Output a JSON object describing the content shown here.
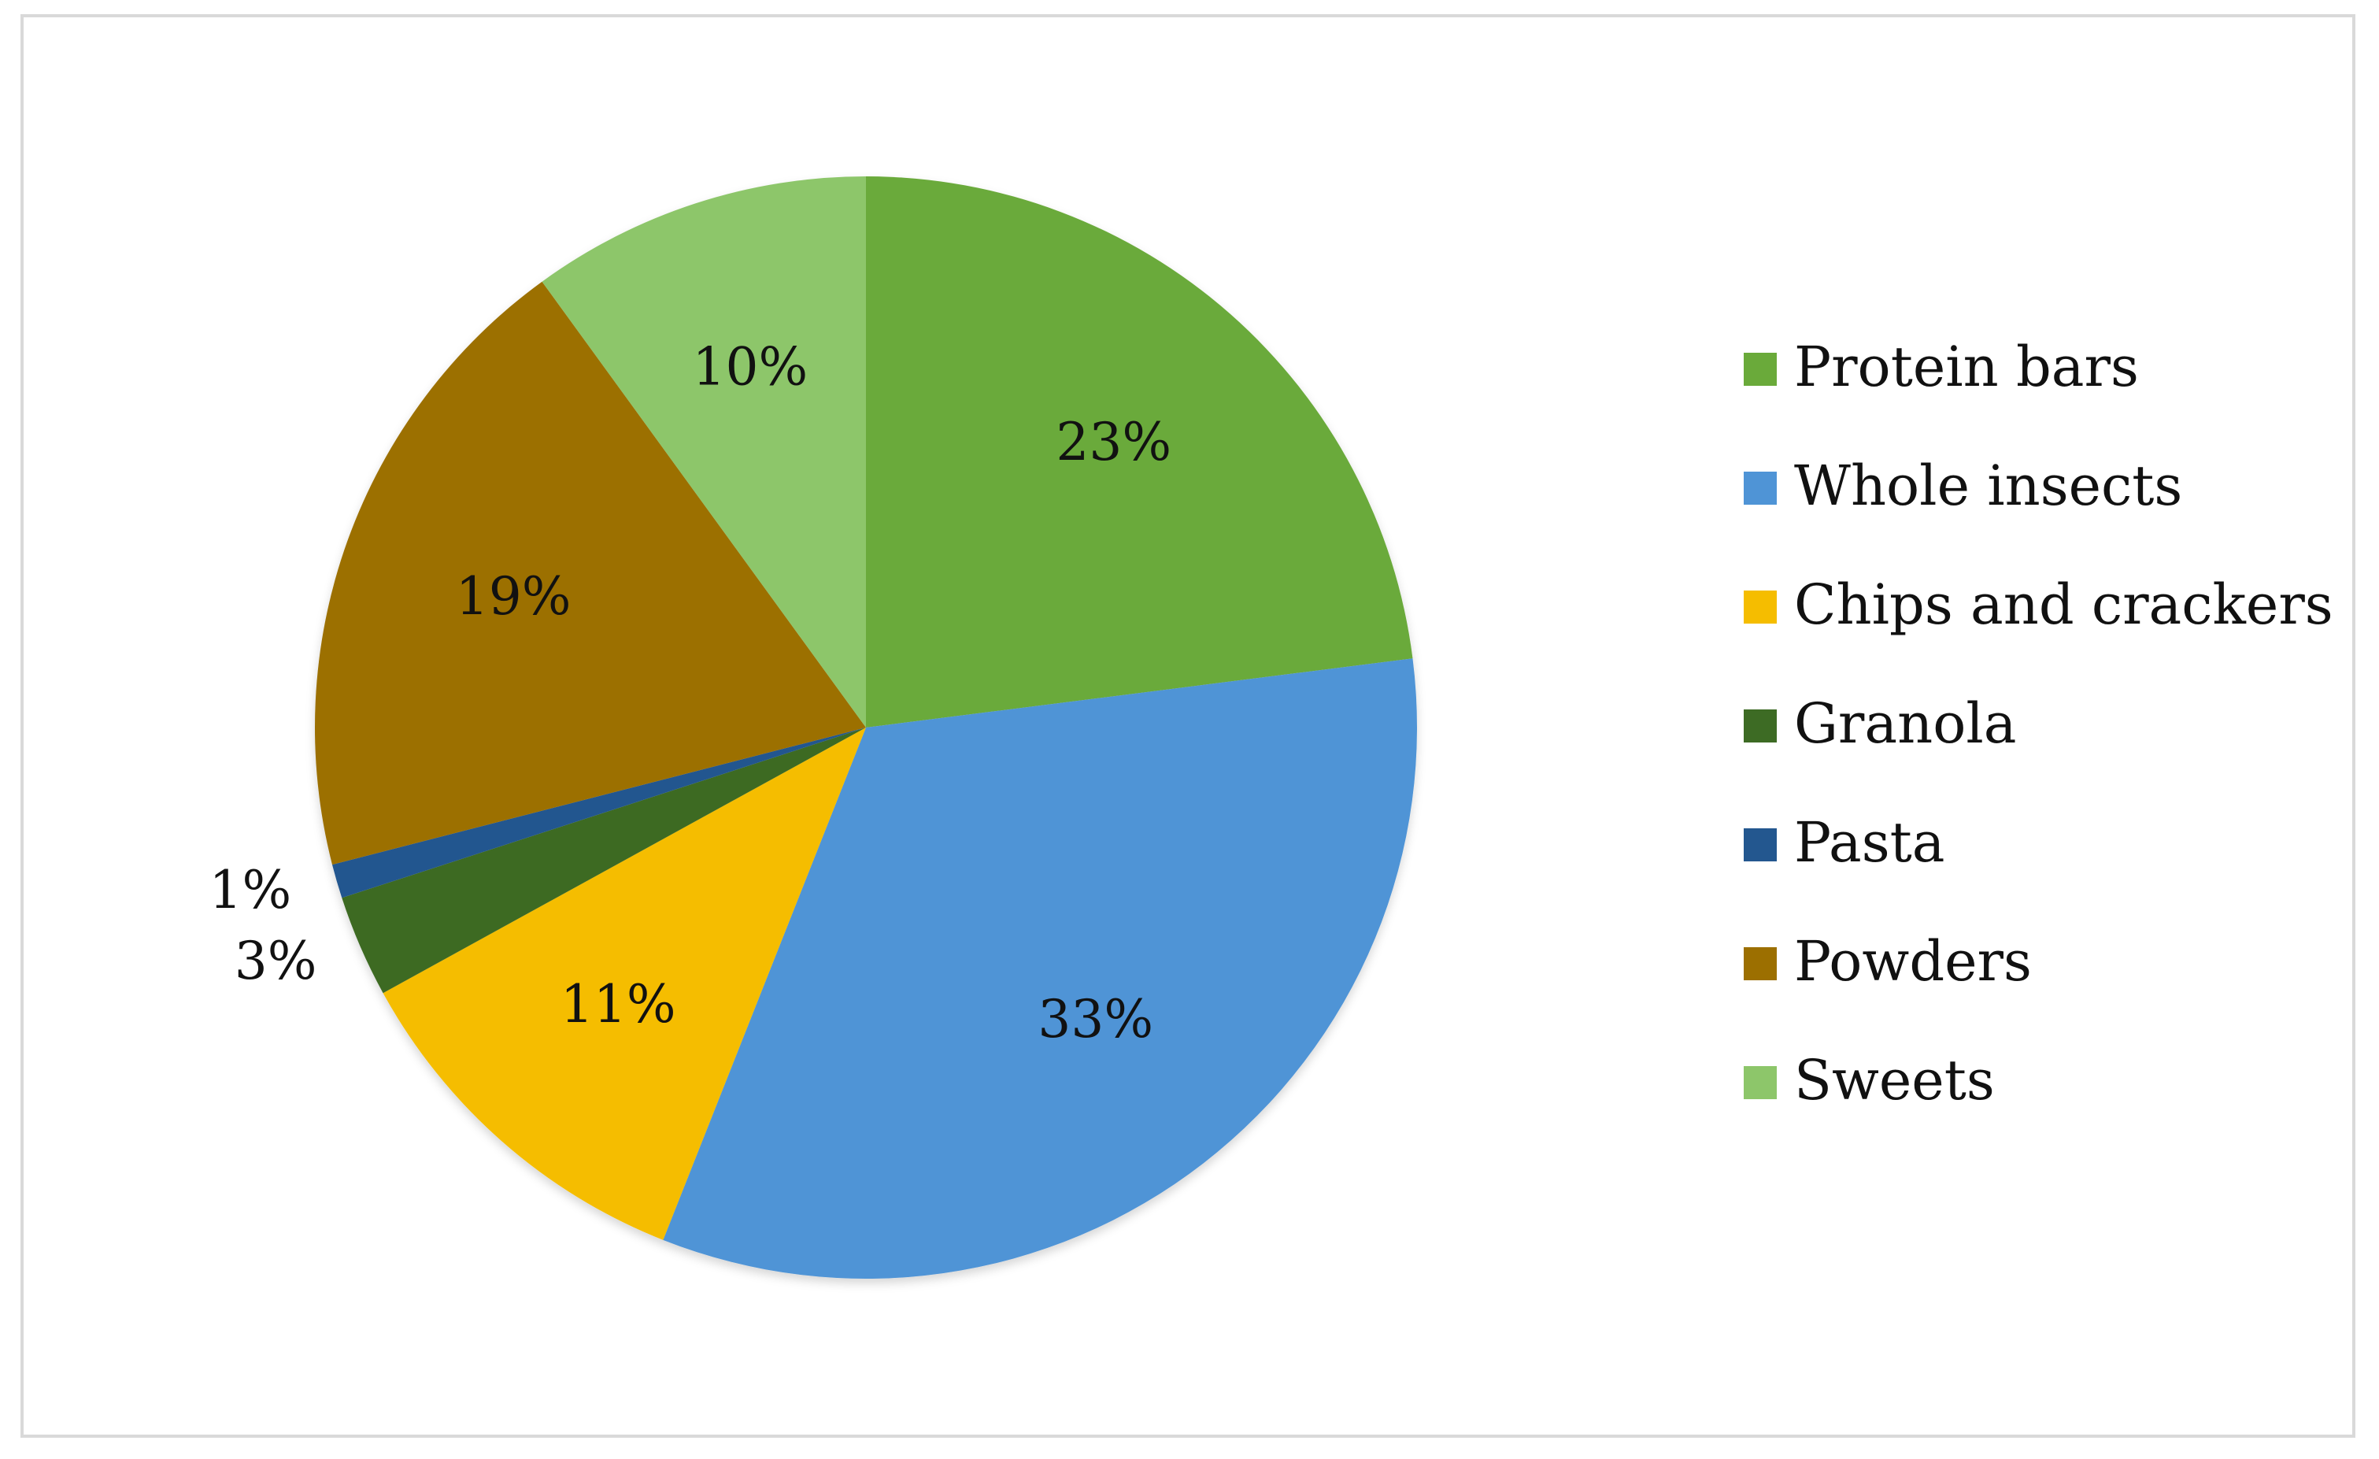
{
  "chart_data": {
    "type": "pie",
    "title": "",
    "legend": "right",
    "series": [
      {
        "values": [
          23,
          33,
          11,
          3,
          1,
          19,
          10
        ],
        "labels": [
          "23%",
          "33%",
          "11%",
          "3%",
          "1%",
          "19%",
          "10%"
        ]
      }
    ],
    "categories": [
      "Protein bars",
      "Whole insects",
      "Chips and crackers",
      "Granola",
      "Pasta",
      "Powders",
      "Sweets"
    ],
    "colors": [
      "#6aaa3a",
      "#4f94d6",
      "#f5bd00",
      "#3d6b24",
      "#23578f",
      "#9c6f00",
      "#8dc66a"
    ],
    "start": "12 o'clock",
    "direction": "clockwise"
  }
}
